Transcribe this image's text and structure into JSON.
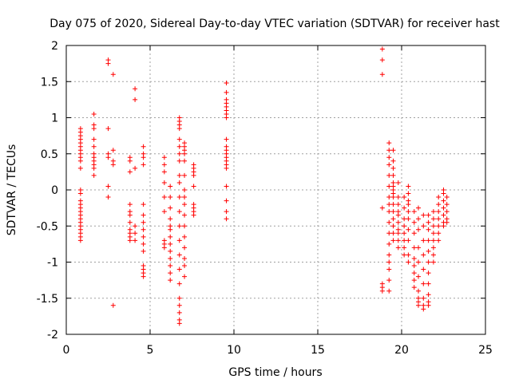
{
  "chart_data": {
    "type": "scatter",
    "title": "Day 075 of 2020, Sidereal Day-to-day VTEC variation (SDTVAR) for receiver hast",
    "xlabel": "GPS time / hours",
    "ylabel": "SDTVAR / TECUs",
    "xlim": [
      0,
      25
    ],
    "ylim": [
      -2,
      2
    ],
    "xticks": [
      0,
      5,
      10,
      15,
      20,
      25
    ],
    "xtick_labels": [
      "0",
      "5",
      "10",
      "15",
      "20",
      "25"
    ],
    "yticks": [
      2,
      1.5,
      1,
      0.5,
      0,
      -0.5,
      -1,
      -1.5,
      -2
    ],
    "ytick_labels": [
      "2",
      "1.5",
      "1",
      "0.5",
      "0",
      "-0.5",
      "-1",
      "-1.5",
      "-2"
    ],
    "grid": true,
    "marker": "+",
    "color": "#ff0000",
    "series": [
      {
        "name": "SDTVAR",
        "clusters": [
          {
            "x": 0.85,
            "ys": [
              0.85,
              0.8,
              0.75,
              0.7,
              0.65,
              0.6,
              0.55,
              0.5,
              0.45,
              0.4,
              0.3,
              0.0,
              -0.05,
              -0.15,
              -0.2,
              -0.25,
              -0.3,
              -0.35,
              -0.4,
              -0.45,
              -0.5,
              -0.55,
              -0.6,
              -0.65,
              -0.7
            ]
          },
          {
            "x": 1.65,
            "ys": [
              1.05,
              0.9,
              0.85,
              0.7,
              0.6,
              0.5,
              0.45,
              0.4,
              0.35,
              0.3,
              0.2
            ]
          },
          {
            "x": 2.5,
            "ys": [
              1.8,
              1.75,
              0.85,
              0.5,
              0.45,
              0.05,
              -0.1
            ]
          },
          {
            "x": 2.8,
            "ys": [
              1.6,
              0.55,
              0.4,
              0.35,
              -1.6
            ]
          },
          {
            "x": 3.8,
            "ys": [
              0.45,
              0.4,
              0.25,
              -0.2,
              -0.3,
              -0.35,
              -0.45,
              -0.55,
              -0.6,
              -0.65,
              -0.7
            ]
          },
          {
            "x": 4.1,
            "ys": [
              1.4,
              1.25,
              0.3,
              -0.5,
              -0.6,
              -0.7
            ]
          },
          {
            "x": 4.6,
            "ys": [
              0.6,
              0.5,
              0.45,
              0.35,
              -0.2,
              -0.35,
              -0.45,
              -0.55,
              -0.65,
              -0.75,
              -0.85,
              -1.05,
              -1.1,
              -1.15,
              -1.2
            ]
          },
          {
            "x": 5.85,
            "ys": [
              0.45,
              0.35,
              0.25,
              0.1,
              -0.1,
              -0.3,
              -0.7,
              -0.75,
              -0.8
            ]
          },
          {
            "x": 6.2,
            "ys": [
              0.05,
              -0.1,
              -0.25,
              -0.4,
              -0.5,
              -0.55,
              -0.65,
              -0.75,
              -0.85,
              -0.95,
              -1.05,
              -1.15,
              -1.25
            ]
          },
          {
            "x": 6.75,
            "ys": [
              1.0,
              0.95,
              0.9,
              0.85,
              0.7,
              0.6,
              0.5,
              0.4,
              0.2,
              0.1,
              -0.1,
              -0.3,
              -0.5,
              -0.7,
              -0.9,
              -1.1,
              -1.3,
              -1.5,
              -1.6,
              -1.7,
              -1.8,
              -1.85
            ]
          },
          {
            "x": 7.05,
            "ys": [
              0.65,
              0.6,
              0.55,
              0.5,
              0.4,
              0.2,
              0.0,
              -0.1,
              -0.2,
              -0.35,
              -0.5,
              -0.65,
              -0.8,
              -0.95,
              -1.05,
              -1.2
            ]
          },
          {
            "x": 7.6,
            "ys": [
              0.35,
              0.3,
              0.25,
              0.2,
              0.05,
              -0.2,
              -0.25,
              -0.3,
              -0.35
            ]
          },
          {
            "x": 9.55,
            "ys": [
              1.48,
              1.35,
              1.25,
              1.2,
              1.15,
              1.1,
              1.05,
              1.0,
              0.7,
              0.6,
              0.55,
              0.5,
              0.45,
              0.4,
              0.35,
              0.3,
              0.05,
              -0.15,
              -0.3,
              -0.4
            ]
          },
          {
            "x": 18.85,
            "ys": [
              1.95,
              1.8,
              1.6,
              -0.25,
              -1.3,
              -1.35,
              -1.4
            ]
          },
          {
            "x": 19.25,
            "ys": [
              0.65,
              0.55,
              0.45,
              0.35,
              0.2,
              0.05,
              -0.1,
              -0.2,
              -0.3,
              -0.45,
              -0.6,
              -0.75,
              -0.9,
              -1.0,
              -1.1,
              -1.25,
              -1.4
            ]
          },
          {
            "x": 19.5,
            "ys": [
              0.55,
              0.4,
              0.3,
              0.2,
              0.1,
              0.05,
              0.0,
              -0.05,
              -0.1,
              -0.2,
              -0.3,
              -0.4,
              -0.5,
              -0.6,
              -0.7
            ]
          },
          {
            "x": 19.8,
            "ys": [
              0.1,
              -0.1,
              -0.2,
              -0.3,
              -0.35,
              -0.45,
              -0.55,
              -0.6,
              -0.7,
              -0.8
            ]
          },
          {
            "x": 20.15,
            "ys": [
              -0.1,
              -0.25,
              -0.4,
              -0.5,
              -0.6,
              -0.7,
              -0.8,
              -0.9
            ]
          },
          {
            "x": 20.4,
            "ys": [
              0.05,
              -0.05,
              -0.15,
              -0.2,
              -0.3,
              -0.4,
              -0.55,
              -0.7,
              -0.9,
              -1.0
            ]
          },
          {
            "x": 20.75,
            "ys": [
              -0.3,
              -0.45,
              -0.6,
              -0.8,
              -0.95,
              -1.05,
              -1.15,
              -1.25,
              -1.35
            ]
          },
          {
            "x": 21.0,
            "ys": [
              -0.25,
              -0.4,
              -0.55,
              -0.8,
              -1.0,
              -1.2,
              -1.4,
              -1.5,
              -1.55,
              -1.6
            ]
          },
          {
            "x": 21.3,
            "ys": [
              -0.35,
              -0.5,
              -0.7,
              -0.9,
              -1.1,
              -1.3,
              -1.5,
              -1.6,
              -1.65
            ]
          },
          {
            "x": 21.6,
            "ys": [
              -0.35,
              -0.45,
              -0.55,
              -0.7,
              -0.85,
              -1.0,
              -1.15,
              -1.3,
              -1.45,
              -1.55,
              -1.6
            ]
          },
          {
            "x": 21.9,
            "ys": [
              -0.3,
              -0.4,
              -0.5,
              -0.6,
              -0.7,
              -0.8,
              -0.9,
              -1.0
            ]
          },
          {
            "x": 22.2,
            "ys": [
              -0.1,
              -0.2,
              -0.3,
              -0.4,
              -0.5,
              -0.6,
              -0.7
            ]
          },
          {
            "x": 22.5,
            "ys": [
              0.0,
              -0.05,
              -0.15,
              -0.25,
              -0.35,
              -0.45,
              -0.5
            ]
          },
          {
            "x": 22.7,
            "ys": [
              -0.1,
              -0.2,
              -0.3,
              -0.4,
              -0.45
            ]
          }
        ]
      }
    ]
  }
}
